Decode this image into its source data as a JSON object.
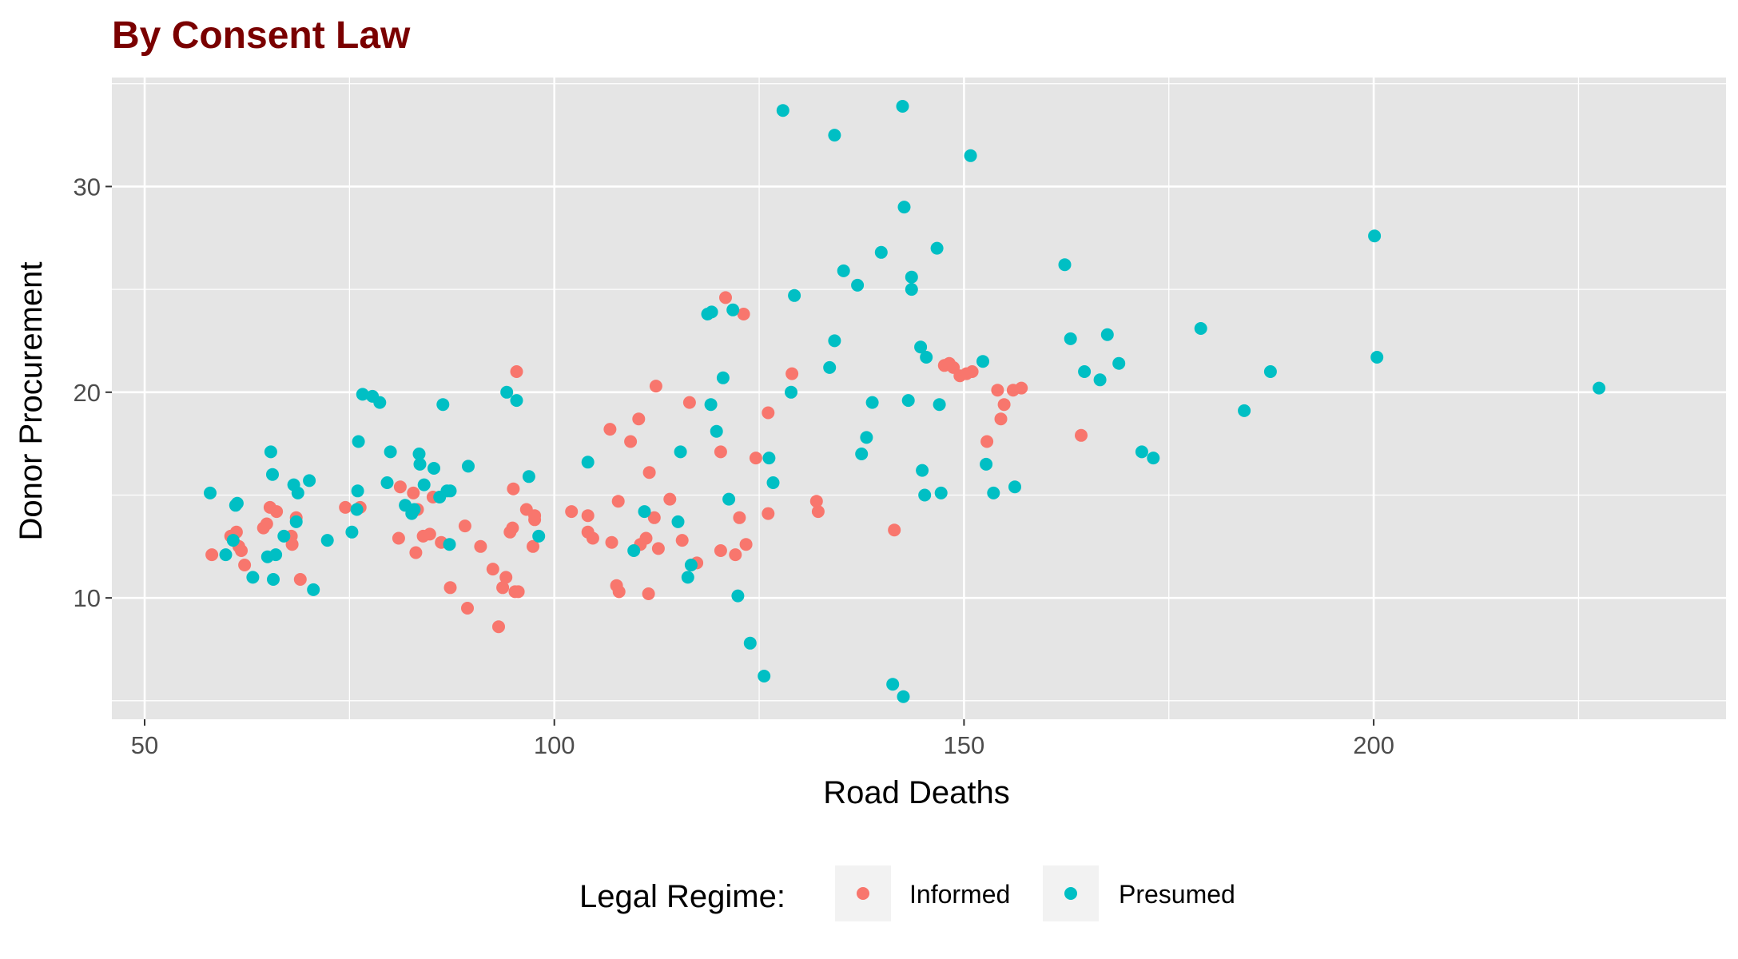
{
  "chart_data": {
    "type": "scatter",
    "title": "By Consent Law",
    "xlabel": "Road Deaths",
    "ylabel": "Donor Procurement",
    "xlim": [
      46,
      243
    ],
    "ylim": [
      4.1,
      35.3
    ],
    "x_ticks": [
      50,
      100,
      150,
      200
    ],
    "y_ticks": [
      10,
      20,
      30
    ],
    "x_tick_labels": [
      "50",
      "100",
      "150",
      "200"
    ],
    "y_tick_labels": [
      "10",
      "20",
      "30"
    ],
    "grid": true,
    "legend": {
      "title": "Legal Regime:",
      "position": "bottom"
    },
    "colors": {
      "Informed": "#F8766D",
      "Presumed": "#00BFC4",
      "panel": "#E5E5E5",
      "grid": "#FFFFFF",
      "title": "#7A0000"
    },
    "series": [
      {
        "name": "Informed",
        "color": "#F8766D",
        "points": [
          [
            58.2,
            12.1
          ],
          [
            60.5,
            13.0
          ],
          [
            61.2,
            13.2
          ],
          [
            61.5,
            12.5
          ],
          [
            61.8,
            12.3
          ],
          [
            62.2,
            11.6
          ],
          [
            64.5,
            13.4
          ],
          [
            64.9,
            13.6
          ],
          [
            65.3,
            14.4
          ],
          [
            66.1,
            14.2
          ],
          [
            67.9,
            13.0
          ],
          [
            68.0,
            12.6
          ],
          [
            68.5,
            13.9
          ],
          [
            69.0,
            10.9
          ],
          [
            74.5,
            14.4
          ],
          [
            76.3,
            14.4
          ],
          [
            81.0,
            12.9
          ],
          [
            81.2,
            15.4
          ],
          [
            82.8,
            15.1
          ],
          [
            83.1,
            12.2
          ],
          [
            83.3,
            14.3
          ],
          [
            84.0,
            13.0
          ],
          [
            84.8,
            13.1
          ],
          [
            85.2,
            14.9
          ],
          [
            86.2,
            12.7
          ],
          [
            87.3,
            10.5
          ],
          [
            89.1,
            13.5
          ],
          [
            89.4,
            9.5
          ],
          [
            91.0,
            12.5
          ],
          [
            92.5,
            11.4
          ],
          [
            93.2,
            8.6
          ],
          [
            93.7,
            10.5
          ],
          [
            94.1,
            11.0
          ],
          [
            94.6,
            13.2
          ],
          [
            94.9,
            13.4
          ],
          [
            95.0,
            15.3
          ],
          [
            95.2,
            10.3
          ],
          [
            95.6,
            10.3
          ],
          [
            95.4,
            21.0
          ],
          [
            96.6,
            14.3
          ],
          [
            97.4,
            12.5
          ],
          [
            97.6,
            13.8
          ],
          [
            97.6,
            14.0
          ],
          [
            102.1,
            14.2
          ],
          [
            104.1,
            14.0
          ],
          [
            104.1,
            13.2
          ],
          [
            104.7,
            12.9
          ],
          [
            106.8,
            18.2
          ],
          [
            107.0,
            12.7
          ],
          [
            107.6,
            10.6
          ],
          [
            107.8,
            14.7
          ],
          [
            107.9,
            10.3
          ],
          [
            109.3,
            17.6
          ],
          [
            110.3,
            18.7
          ],
          [
            110.5,
            12.6
          ],
          [
            111.2,
            12.9
          ],
          [
            111.5,
            10.2
          ],
          [
            111.6,
            16.1
          ],
          [
            112.2,
            13.9
          ],
          [
            112.4,
            20.3
          ],
          [
            112.7,
            12.4
          ],
          [
            114.1,
            14.8
          ],
          [
            115.6,
            12.8
          ],
          [
            116.5,
            19.5
          ],
          [
            117.4,
            11.7
          ],
          [
            120.3,
            17.1
          ],
          [
            120.3,
            12.3
          ],
          [
            120.9,
            24.6
          ],
          [
            122.1,
            12.1
          ],
          [
            122.6,
            13.9
          ],
          [
            123.1,
            23.8
          ],
          [
            123.4,
            12.6
          ],
          [
            124.6,
            16.8
          ],
          [
            126.1,
            19.0
          ],
          [
            126.1,
            14.1
          ],
          [
            129.0,
            20.9
          ],
          [
            132.0,
            14.7
          ],
          [
            132.2,
            14.2
          ],
          [
            141.5,
            13.3
          ],
          [
            147.6,
            21.3
          ],
          [
            148.2,
            21.4
          ],
          [
            148.7,
            21.2
          ],
          [
            149.5,
            20.8
          ],
          [
            150.3,
            20.9
          ],
          [
            151.0,
            21.0
          ],
          [
            152.8,
            17.6
          ],
          [
            154.1,
            20.1
          ],
          [
            154.5,
            18.7
          ],
          [
            154.9,
            19.4
          ],
          [
            156.0,
            20.1
          ],
          [
            157.0,
            20.2
          ],
          [
            164.3,
            17.9
          ]
        ]
      },
      {
        "name": "Presumed",
        "color": "#00BFC4",
        "points": [
          [
            58.0,
            15.1
          ],
          [
            59.9,
            12.1
          ],
          [
            60.8,
            12.8
          ],
          [
            61.1,
            14.5
          ],
          [
            61.3,
            14.6
          ],
          [
            63.2,
            11.0
          ],
          [
            65.0,
            12.0
          ],
          [
            65.4,
            17.1
          ],
          [
            65.6,
            16.0
          ],
          [
            65.7,
            10.9
          ],
          [
            66.0,
            12.1
          ],
          [
            67.0,
            13.0
          ],
          [
            68.2,
            15.5
          ],
          [
            68.5,
            13.7
          ],
          [
            68.7,
            15.1
          ],
          [
            70.1,
            15.7
          ],
          [
            70.6,
            10.4
          ],
          [
            72.3,
            12.8
          ],
          [
            75.3,
            13.2
          ],
          [
            75.9,
            14.3
          ],
          [
            76.0,
            15.2
          ],
          [
            76.1,
            17.6
          ],
          [
            76.6,
            19.9
          ],
          [
            77.8,
            19.8
          ],
          [
            78.7,
            19.5
          ],
          [
            79.6,
            15.6
          ],
          [
            80.0,
            17.1
          ],
          [
            81.8,
            14.5
          ],
          [
            82.6,
            14.1
          ],
          [
            82.9,
            14.3
          ],
          [
            83.5,
            17.0
          ],
          [
            83.6,
            16.5
          ],
          [
            84.1,
            15.5
          ],
          [
            85.3,
            16.3
          ],
          [
            86.0,
            14.9
          ],
          [
            86.4,
            19.4
          ],
          [
            86.9,
            15.2
          ],
          [
            87.2,
            12.6
          ],
          [
            87.3,
            15.2
          ],
          [
            89.5,
            16.4
          ],
          [
            94.2,
            20.0
          ],
          [
            95.4,
            19.6
          ],
          [
            96.9,
            15.9
          ],
          [
            98.1,
            13.0
          ],
          [
            104.1,
            16.6
          ],
          [
            109.7,
            12.3
          ],
          [
            111.0,
            14.2
          ],
          [
            115.1,
            13.7
          ],
          [
            115.4,
            17.1
          ],
          [
            116.3,
            11.0
          ],
          [
            116.7,
            11.6
          ],
          [
            118.7,
            23.8
          ],
          [
            119.2,
            23.9
          ],
          [
            119.1,
            19.4
          ],
          [
            119.8,
            18.1
          ],
          [
            120.6,
            20.7
          ],
          [
            121.3,
            14.8
          ],
          [
            121.8,
            24.0
          ],
          [
            122.4,
            10.1
          ],
          [
            123.9,
            7.8
          ],
          [
            125.6,
            6.2
          ],
          [
            126.2,
            16.8
          ],
          [
            126.7,
            15.6
          ],
          [
            127.9,
            33.7
          ],
          [
            128.9,
            20.0
          ],
          [
            129.3,
            24.7
          ],
          [
            133.6,
            21.2
          ],
          [
            134.2,
            32.5
          ],
          [
            134.2,
            22.5
          ],
          [
            135.3,
            25.9
          ],
          [
            137.0,
            25.2
          ],
          [
            137.5,
            17.0
          ],
          [
            138.1,
            17.8
          ],
          [
            138.8,
            19.5
          ],
          [
            139.9,
            26.8
          ],
          [
            141.3,
            5.8
          ],
          [
            142.6,
            5.2
          ],
          [
            142.5,
            33.9
          ],
          [
            142.7,
            29.0
          ],
          [
            143.2,
            19.6
          ],
          [
            143.6,
            25.6
          ],
          [
            143.6,
            25.0
          ],
          [
            144.7,
            22.2
          ],
          [
            144.9,
            16.2
          ],
          [
            145.2,
            15.0
          ],
          [
            145.4,
            21.7
          ],
          [
            146.7,
            27.0
          ],
          [
            147.0,
            19.4
          ],
          [
            147.2,
            15.1
          ],
          [
            150.8,
            31.5
          ],
          [
            152.3,
            21.5
          ],
          [
            152.7,
            16.5
          ],
          [
            153.6,
            15.1
          ],
          [
            156.2,
            15.4
          ],
          [
            162.3,
            26.2
          ],
          [
            163.0,
            22.6
          ],
          [
            164.7,
            21.0
          ],
          [
            166.6,
            20.6
          ],
          [
            167.5,
            22.8
          ],
          [
            168.9,
            21.4
          ],
          [
            171.7,
            17.1
          ],
          [
            173.1,
            16.8
          ],
          [
            178.9,
            23.1
          ],
          [
            184.2,
            19.1
          ],
          [
            187.4,
            21.0
          ],
          [
            200.1,
            27.6
          ],
          [
            200.4,
            21.7
          ],
          [
            227.5,
            20.2
          ]
        ]
      }
    ]
  }
}
